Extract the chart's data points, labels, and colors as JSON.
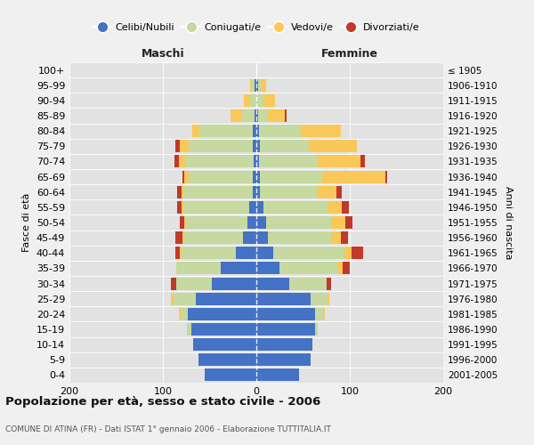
{
  "age_groups": [
    "0-4",
    "5-9",
    "10-14",
    "15-19",
    "20-24",
    "25-29",
    "30-34",
    "35-39",
    "40-44",
    "45-49",
    "50-54",
    "55-59",
    "60-64",
    "65-69",
    "70-74",
    "75-79",
    "80-84",
    "85-89",
    "90-94",
    "95-99",
    "100+"
  ],
  "birth_years": [
    "2001-2005",
    "1996-2000",
    "1991-1995",
    "1986-1990",
    "1981-1985",
    "1976-1980",
    "1971-1975",
    "1966-1970",
    "1961-1965",
    "1956-1960",
    "1951-1955",
    "1946-1950",
    "1941-1945",
    "1936-1940",
    "1931-1935",
    "1926-1930",
    "1921-1925",
    "1916-1920",
    "1911-1915",
    "1906-1910",
    "≤ 1905"
  ],
  "maschi": {
    "celibi": [
      55,
      62,
      68,
      70,
      73,
      65,
      48,
      38,
      22,
      14,
      10,
      8,
      4,
      4,
      3,
      4,
      4,
      2,
      0,
      2,
      0
    ],
    "coniugati": [
      0,
      0,
      0,
      4,
      8,
      24,
      38,
      48,
      58,
      63,
      65,
      70,
      74,
      68,
      72,
      68,
      57,
      14,
      8,
      3,
      0
    ],
    "vedovi": [
      0,
      0,
      0,
      0,
      2,
      2,
      0,
      0,
      2,
      2,
      2,
      2,
      2,
      5,
      8,
      10,
      8,
      12,
      5,
      2,
      0
    ],
    "divorziati": [
      0,
      0,
      0,
      0,
      0,
      0,
      5,
      0,
      5,
      8,
      5,
      5,
      5,
      2,
      5,
      5,
      0,
      0,
      0,
      0,
      0
    ]
  },
  "femmine": {
    "nubili": [
      46,
      58,
      60,
      63,
      63,
      58,
      35,
      25,
      18,
      12,
      10,
      8,
      4,
      4,
      3,
      4,
      3,
      2,
      0,
      2,
      0
    ],
    "coniugate": [
      0,
      0,
      0,
      3,
      8,
      18,
      40,
      62,
      76,
      68,
      70,
      68,
      62,
      66,
      63,
      52,
      45,
      10,
      8,
      3,
      0
    ],
    "vedove": [
      0,
      0,
      0,
      0,
      2,
      2,
      0,
      5,
      8,
      10,
      15,
      15,
      20,
      68,
      45,
      52,
      42,
      18,
      12,
      5,
      0
    ],
    "divorziate": [
      0,
      0,
      0,
      0,
      0,
      0,
      5,
      8,
      12,
      8,
      8,
      8,
      5,
      2,
      5,
      0,
      0,
      2,
      0,
      0,
      0
    ]
  },
  "colors": {
    "celibi_nubili": "#4472C4",
    "coniugati": "#C5D9A0",
    "vedovi": "#FAC858",
    "divorziati": "#C0392B"
  },
  "xlim": [
    -200,
    200
  ],
  "xticks": [
    -200,
    -100,
    0,
    100,
    200
  ],
  "xticklabels": [
    "200",
    "100",
    "0",
    "100",
    "200"
  ],
  "title": "Popolazione per età, sesso e stato civile - 2006",
  "subtitle": "COMUNE DI ATINA (FR) - Dati ISTAT 1° gennaio 2006 - Elaborazione TUTTITALIA.IT",
  "ylabel_left": "Fasce di età",
  "ylabel_right": "Anni di nascita",
  "maschi_label": "Maschi",
  "femmine_label": "Femmine",
  "legend_labels": [
    "Celibi/Nubili",
    "Coniugati/e",
    "Vedovi/e",
    "Divorziati/e"
  ],
  "bg_color": "#f0f0f0",
  "plot_bg": "#e2e2e2"
}
